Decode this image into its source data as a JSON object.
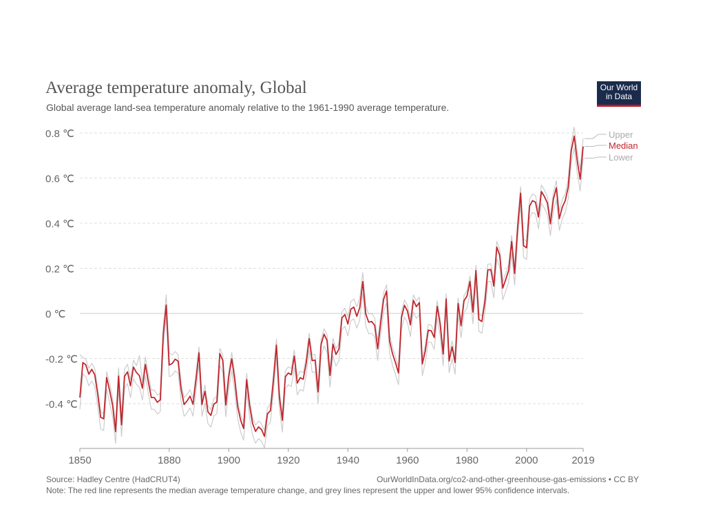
{
  "header": {
    "title": "Average temperature anomaly, Global",
    "subtitle": "Global average land-sea temperature anomaly relative to the 1961-1990 average temperature.",
    "logo_line1": "Our World",
    "logo_line2": "in Data"
  },
  "footer": {
    "source": "Source: Hadley Centre (HadCRUT4)",
    "url": "OurWorldInData.org/co2-and-other-greenhouse-gas-emissions • CC BY",
    "note": "Note: The red line represents the median average temperature change, and grey lines represent the upper and lower 95% confidence intervals."
  },
  "colors": {
    "median": "#c0262d",
    "bounds": "#cccccc",
    "grid": "#dddddd",
    "axis_text": "#666666",
    "logo_bg": "#1a2b4c",
    "logo_accent": "#c0192a"
  },
  "chart_data": {
    "type": "line",
    "title": "Average temperature anomaly, Global",
    "xlabel": "",
    "ylabel": "",
    "xlim": [
      1850,
      2019
    ],
    "ylim": [
      -0.6,
      0.8
    ],
    "x_ticks": [
      1850,
      1880,
      1900,
      1920,
      1940,
      1960,
      1980,
      2000,
      2019
    ],
    "y_ticks": [
      -0.4,
      -0.2,
      0,
      0.2,
      0.4,
      0.6,
      0.8
    ],
    "y_tick_labels": [
      "-0.4 ℃",
      "-0.2 ℃",
      "0 ℃",
      "0.2 ℃",
      "0.4 ℃",
      "0.6 ℃",
      "0.8 ℃"
    ],
    "grid": true,
    "legend_position": "right-end-labels",
    "x": [
      1850,
      1851,
      1852,
      1853,
      1854,
      1855,
      1856,
      1857,
      1858,
      1859,
      1860,
      1861,
      1862,
      1863,
      1864,
      1865,
      1866,
      1867,
      1868,
      1869,
      1870,
      1871,
      1872,
      1873,
      1874,
      1875,
      1876,
      1877,
      1878,
      1879,
      1880,
      1881,
      1882,
      1883,
      1884,
      1885,
      1886,
      1887,
      1888,
      1889,
      1890,
      1891,
      1892,
      1893,
      1894,
      1895,
      1896,
      1897,
      1898,
      1899,
      1900,
      1901,
      1902,
      1903,
      1904,
      1905,
      1906,
      1907,
      1908,
      1909,
      1910,
      1911,
      1912,
      1913,
      1914,
      1915,
      1916,
      1917,
      1918,
      1919,
      1920,
      1921,
      1922,
      1923,
      1924,
      1925,
      1926,
      1927,
      1928,
      1929,
      1930,
      1931,
      1932,
      1933,
      1934,
      1935,
      1936,
      1937,
      1938,
      1939,
      1940,
      1941,
      1942,
      1943,
      1944,
      1945,
      1946,
      1947,
      1948,
      1949,
      1950,
      1951,
      1952,
      1953,
      1954,
      1955,
      1956,
      1957,
      1958,
      1959,
      1960,
      1961,
      1962,
      1963,
      1964,
      1965,
      1966,
      1967,
      1968,
      1969,
      1970,
      1971,
      1972,
      1973,
      1974,
      1975,
      1976,
      1977,
      1978,
      1979,
      1980,
      1981,
      1982,
      1983,
      1984,
      1985,
      1986,
      1987,
      1988,
      1989,
      1990,
      1991,
      1992,
      1993,
      1994,
      1995,
      1996,
      1997,
      1998,
      1999,
      2000,
      2001,
      2002,
      2003,
      2004,
      2005,
      2006,
      2007,
      2008,
      2009,
      2010,
      2011,
      2012,
      2013,
      2014,
      2015,
      2016,
      2017,
      2018,
      2019
    ],
    "series": [
      {
        "name": "Median",
        "values": [
          -0.373,
          -0.218,
          -0.228,
          -0.269,
          -0.248,
          -0.272,
          -0.358,
          -0.461,
          -0.467,
          -0.284,
          -0.343,
          -0.407,
          -0.524,
          -0.278,
          -0.494,
          -0.279,
          -0.259,
          -0.321,
          -0.238,
          -0.262,
          -0.276,
          -0.332,
          -0.226,
          -0.304,
          -0.373,
          -0.373,
          -0.394,
          -0.383,
          -0.094,
          0.037,
          -0.229,
          -0.222,
          -0.203,
          -0.212,
          -0.337,
          -0.404,
          -0.388,
          -0.367,
          -0.403,
          -0.294,
          -0.175,
          -0.404,
          -0.345,
          -0.436,
          -0.452,
          -0.402,
          -0.393,
          -0.178,
          -0.209,
          -0.406,
          -0.281,
          -0.201,
          -0.293,
          -0.414,
          -0.474,
          -0.51,
          -0.294,
          -0.409,
          -0.488,
          -0.523,
          -0.503,
          -0.515,
          -0.545,
          -0.445,
          -0.431,
          -0.296,
          -0.141,
          -0.37,
          -0.474,
          -0.281,
          -0.264,
          -0.272,
          -0.189,
          -0.309,
          -0.285,
          -0.292,
          -0.221,
          -0.112,
          -0.209,
          -0.207,
          -0.348,
          -0.138,
          -0.092,
          -0.12,
          -0.275,
          -0.136,
          -0.182,
          -0.158,
          -0.02,
          -0.005,
          -0.047,
          0.019,
          0.028,
          -0.013,
          0.026,
          0.141,
          -0.002,
          -0.039,
          -0.036,
          -0.053,
          -0.157,
          -0.043,
          0.062,
          0.099,
          -0.122,
          -0.179,
          -0.219,
          -0.264,
          -0.018,
          0.036,
          0.011,
          -0.051,
          0.058,
          0.03,
          0.048,
          -0.224,
          -0.166,
          -0.074,
          -0.077,
          -0.107,
          0.031,
          -0.05,
          -0.18,
          0.064,
          -0.211,
          -0.148,
          -0.218,
          0.044,
          -0.055,
          0.056,
          0.077,
          0.142,
          0.006,
          0.19,
          -0.027,
          -0.036,
          0.05,
          0.193,
          0.194,
          0.121,
          0.294,
          0.257,
          0.112,
          0.15,
          0.191,
          0.319,
          0.177,
          0.38,
          0.533,
          0.3,
          0.291,
          0.475,
          0.5,
          0.493,
          0.427,
          0.54,
          0.518,
          0.489,
          0.397,
          0.506,
          0.557,
          0.42,
          0.471,
          0.5,
          0.561,
          0.72,
          0.786,
          0.678,
          0.595,
          0.74
        ]
      },
      {
        "name": "Upper",
        "values": [
          -0.183,
          -0.196,
          -0.202,
          -0.243,
          -0.222,
          -0.244,
          -0.334,
          -0.435,
          -0.445,
          -0.259,
          -0.308,
          -0.378,
          -0.492,
          -0.241,
          -0.459,
          -0.246,
          -0.225,
          -0.292,
          -0.207,
          -0.232,
          -0.187,
          -0.305,
          -0.193,
          -0.269,
          -0.34,
          -0.34,
          -0.362,
          -0.354,
          -0.059,
          0.082,
          -0.175,
          -0.184,
          -0.169,
          -0.184,
          -0.309,
          -0.374,
          -0.359,
          -0.338,
          -0.377,
          -0.266,
          -0.149,
          -0.378,
          -0.318,
          -0.409,
          -0.426,
          -0.377,
          -0.368,
          -0.155,
          -0.184,
          -0.379,
          -0.256,
          -0.173,
          -0.266,
          -0.388,
          -0.448,
          -0.483,
          -0.266,
          -0.383,
          -0.463,
          -0.496,
          -0.477,
          -0.49,
          -0.519,
          -0.418,
          -0.403,
          -0.269,
          -0.114,
          -0.343,
          -0.447,
          -0.255,
          -0.237,
          -0.244,
          -0.163,
          -0.281,
          -0.256,
          -0.263,
          -0.196,
          -0.088,
          -0.183,
          -0.182,
          -0.323,
          -0.115,
          -0.068,
          -0.095,
          -0.25,
          -0.11,
          -0.157,
          -0.132,
          0.006,
          0.023,
          -0.015,
          0.052,
          0.064,
          0.03,
          0.069,
          0.181,
          0.032,
          -0.003,
          0.0,
          -0.02,
          -0.122,
          -0.011,
          0.092,
          0.127,
          -0.094,
          -0.15,
          -0.192,
          -0.236,
          0.008,
          0.06,
          0.036,
          -0.025,
          0.082,
          0.055,
          0.072,
          -0.199,
          -0.14,
          -0.049,
          -0.052,
          -0.083,
          0.056,
          -0.026,
          -0.155,
          0.088,
          -0.186,
          -0.122,
          -0.193,
          0.068,
          -0.031,
          0.08,
          0.101,
          0.166,
          0.031,
          0.214,
          -0.002,
          -0.011,
          0.075,
          0.218,
          0.22,
          0.146,
          0.32,
          0.283,
          0.139,
          0.178,
          0.218,
          0.346,
          0.205,
          0.409,
          0.562,
          0.329,
          0.32,
          0.504,
          0.529,
          0.522,
          0.456,
          0.569,
          0.547,
          0.518,
          0.426,
          0.536,
          0.588,
          0.452,
          0.503,
          0.533,
          0.595,
          0.755,
          0.826,
          0.72,
          0.639,
          0.775
        ]
      },
      {
        "name": "Lower",
        "values": [
          -0.425,
          -0.269,
          -0.28,
          -0.321,
          -0.3,
          -0.324,
          -0.41,
          -0.513,
          -0.519,
          -0.336,
          -0.395,
          -0.459,
          -0.576,
          -0.33,
          -0.546,
          -0.331,
          -0.311,
          -0.373,
          -0.29,
          -0.314,
          -0.328,
          -0.384,
          -0.278,
          -0.356,
          -0.425,
          -0.425,
          -0.446,
          -0.435,
          -0.146,
          -0.015,
          -0.281,
          -0.274,
          -0.255,
          -0.264,
          -0.389,
          -0.456,
          -0.44,
          -0.419,
          -0.455,
          -0.346,
          -0.227,
          -0.456,
          -0.397,
          -0.488,
          -0.504,
          -0.454,
          -0.445,
          -0.23,
          -0.261,
          -0.458,
          -0.333,
          -0.253,
          -0.345,
          -0.466,
          -0.526,
          -0.562,
          -0.346,
          -0.461,
          -0.54,
          -0.575,
          -0.555,
          -0.567,
          -0.597,
          -0.497,
          -0.483,
          -0.348,
          -0.193,
          -0.422,
          -0.526,
          -0.333,
          -0.316,
          -0.324,
          -0.241,
          -0.361,
          -0.337,
          -0.344,
          -0.273,
          -0.164,
          -0.261,
          -0.259,
          -0.4,
          -0.19,
          -0.144,
          -0.172,
          -0.327,
          -0.188,
          -0.234,
          -0.21,
          -0.072,
          -0.057,
          -0.099,
          -0.033,
          -0.024,
          -0.065,
          -0.026,
          0.089,
          -0.054,
          -0.091,
          -0.088,
          -0.105,
          -0.209,
          -0.095,
          0.01,
          0.047,
          -0.174,
          -0.231,
          -0.271,
          -0.316,
          -0.07,
          -0.016,
          -0.041,
          -0.103,
          0.006,
          -0.022,
          -0.004,
          -0.276,
          -0.218,
          -0.126,
          -0.129,
          -0.159,
          -0.021,
          -0.102,
          -0.232,
          0.012,
          -0.263,
          -0.2,
          -0.27,
          -0.008,
          -0.107,
          0.004,
          0.025,
          0.09,
          -0.046,
          0.138,
          -0.079,
          -0.088,
          -0.002,
          0.141,
          0.142,
          0.069,
          0.242,
          0.205,
          0.06,
          0.098,
          0.139,
          0.267,
          0.125,
          0.328,
          0.481,
          0.248,
          0.239,
          0.423,
          0.448,
          0.441,
          0.375,
          0.488,
          0.466,
          0.437,
          0.345,
          0.454,
          0.505,
          0.368,
          0.419,
          0.448,
          0.509,
          0.668,
          0.734,
          0.626,
          0.543,
          0.688
        ]
      }
    ]
  }
}
